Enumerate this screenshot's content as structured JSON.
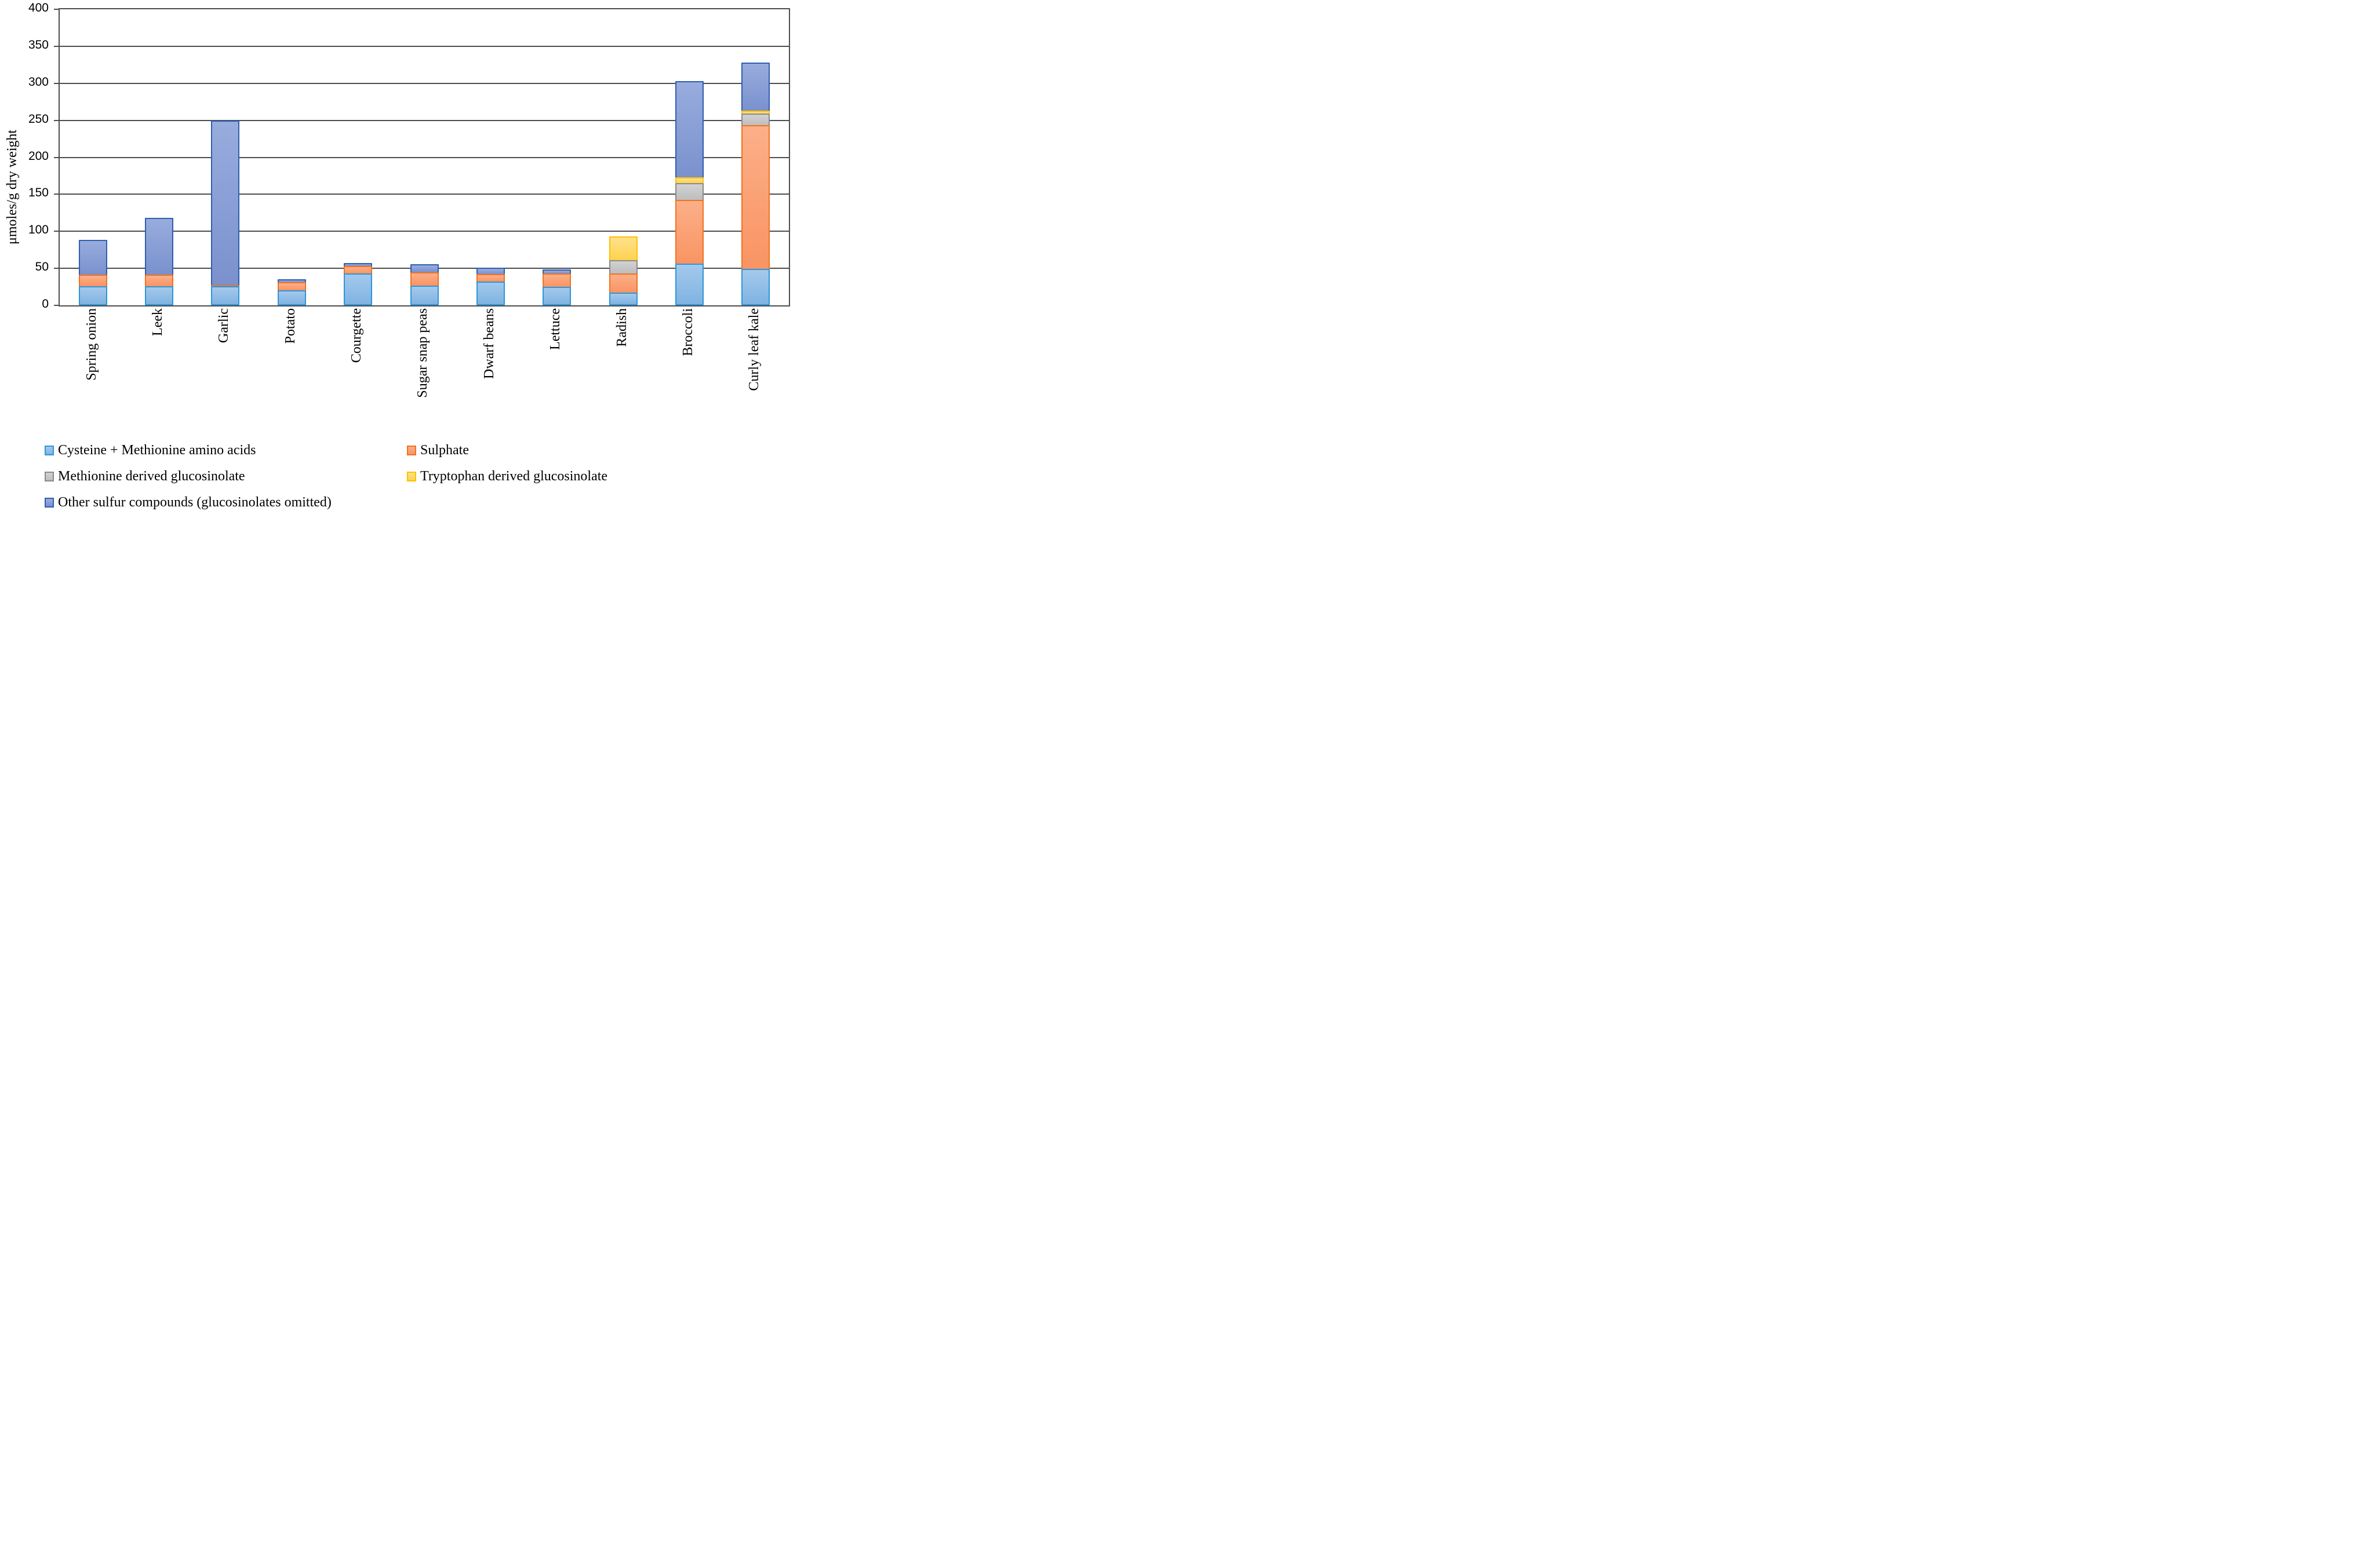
{
  "chart_data": {
    "type": "bar",
    "stacked": true,
    "title": "",
    "xlabel": "",
    "ylabel": "μmoles/g dry weight",
    "ylim": [
      0,
      400
    ],
    "ytick_interval": 50,
    "yticks": [
      0,
      50,
      100,
      150,
      200,
      250,
      300,
      350,
      400
    ],
    "grid": true,
    "legend_position": "bottom",
    "categories": [
      "Spring onion",
      "Leek",
      "Garlic",
      "Potato",
      "Courgette",
      "Sugar snap peas",
      "Dwarf beans",
      "Lettuce",
      "Radish",
      "Broccoli",
      "Curly leaf kale"
    ],
    "series": [
      {
        "id": "cysteine-methionine",
        "name": "Cysteine + Methionine amino acids",
        "fill_top": "#A4C9EC",
        "fill_bottom": "#7FB3E2",
        "border": "#2E96D8",
        "values": [
          26,
          26,
          26,
          20,
          43,
          27,
          32,
          25,
          17,
          56,
          49
        ]
      },
      {
        "id": "sulphate",
        "name": "Sulphate",
        "fill_top": "#FCAF88",
        "fill_bottom": "#F99463",
        "border": "#F07321",
        "values": [
          17,
          17,
          3,
          13,
          12,
          19,
          12,
          20,
          28,
          88,
          196
        ]
      },
      {
        "id": "methionine-glucosinolate",
        "name": "Methionine derived glucosinolate",
        "fill_top": "#D2D2D2",
        "fill_bottom": "#BDBDBD",
        "border": "#8A8A8A",
        "values": [
          0,
          0,
          0,
          0,
          0,
          0,
          0,
          0,
          19,
          24,
          17
        ]
      },
      {
        "id": "tryptophan-glucosinolate",
        "name": "Tryptophan derived glucosinolate",
        "fill_top": "#FFE18C",
        "fill_bottom": "#FFD24D",
        "border": "#FFC000",
        "values": [
          0,
          0,
          0,
          0,
          0,
          0,
          0,
          0,
          34,
          10,
          6
        ]
      },
      {
        "id": "other-sulfur",
        "name": "Other sulfur compounds (glucosinolates omitted)",
        "fill_top": "#98ACDD",
        "fill_bottom": "#7A91CE",
        "border": "#2F5FAE",
        "values": [
          49,
          78,
          224,
          5,
          5,
          13,
          10,
          7,
          0,
          131,
          66
        ]
      }
    ],
    "totals": [
      92,
      121,
      253,
      38,
      60,
      59,
      54,
      52,
      98,
      309,
      334
    ]
  },
  "axis_colors": {
    "frame": "#4d4d4d",
    "text": "#000000"
  }
}
